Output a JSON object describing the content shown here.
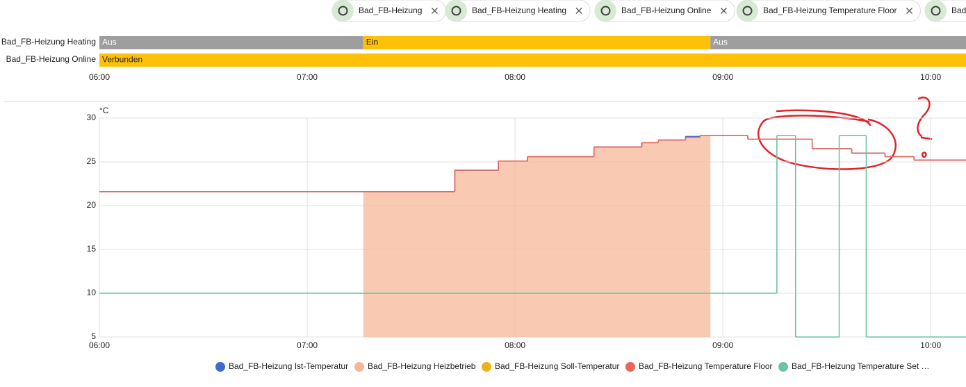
{
  "chips": [
    {
      "label": "Bad_FB-Heizung"
    },
    {
      "label": "Bad_FB-Heizung Heating"
    },
    {
      "label": "Bad_FB-Heizung Online"
    },
    {
      "label": "Bad_FB-Heizung Temperature Floor"
    },
    {
      "label": "Bad"
    }
  ],
  "timeline": {
    "xlim": [
      6,
      10.17
    ],
    "xticks": [
      {
        "value": 6,
        "label": "06:00"
      },
      {
        "value": 7,
        "label": "07:00"
      },
      {
        "value": 8,
        "label": "08:00"
      },
      {
        "value": 9,
        "label": "09:00"
      },
      {
        "value": 10,
        "label": "10:00"
      }
    ],
    "rows": [
      {
        "label": "Bad_FB-Heizung Heating",
        "segments": [
          {
            "label": "Aus",
            "start": 6,
            "end": 7.27,
            "color": "#9e9e9e"
          },
          {
            "label": "Ein",
            "start": 7.27,
            "end": 8.94,
            "color": "#ffc107"
          },
          {
            "label": "Aus",
            "start": 8.94,
            "end": 10.17,
            "color": "#9e9e9e"
          }
        ]
      },
      {
        "label": "Bad_FB-Heizung Online",
        "segments": [
          {
            "label": "Verbunden",
            "start": 6,
            "end": 10.17,
            "color": "#ffc107"
          }
        ]
      }
    ]
  },
  "chart_data": {
    "type": "step-line",
    "y_unit": "°C",
    "xlim": [
      6,
      10.17
    ],
    "ylim": [
      5,
      30
    ],
    "xticks": [
      {
        "value": 6,
        "label": "06:00"
      },
      {
        "value": 7,
        "label": "07:00"
      },
      {
        "value": 8,
        "label": "08:00"
      },
      {
        "value": 9,
        "label": "09:00"
      },
      {
        "value": 10,
        "label": "10:00"
      }
    ],
    "yticks": [
      5,
      10,
      15,
      20,
      25,
      30
    ],
    "grid": true,
    "series": [
      {
        "name": "Bad_FB-Heizung Ist-Temperatur",
        "color": "#4269d0",
        "kind": "line",
        "x": [
          6,
          7.71,
          7.92,
          8.06,
          8.38,
          8.61,
          8.69,
          8.82,
          8.89,
          9.12,
          9.43,
          9.62,
          9.78,
          9.92
        ],
        "values": [
          21.6,
          24.05,
          25.1,
          25.6,
          26.7,
          27.2,
          27.5,
          27.9,
          28.0,
          27.6,
          26.5,
          26.0,
          25.6,
          25.2
        ]
      },
      {
        "name": "Bad_FB-Heizung Heizbetrieb",
        "color": "#f7b797",
        "kind": "area",
        "x_end": 8.94,
        "x": [
          7.27,
          7.71,
          7.92,
          8.06,
          8.38,
          8.61,
          8.69,
          8.82,
          8.89
        ],
        "values": [
          21.6,
          24.05,
          25.1,
          25.6,
          26.7,
          27.2,
          27.5,
          27.8,
          28.0
        ]
      },
      {
        "name": "Bad_FB-Heizung Soll-Temperatur",
        "color": "#efb118",
        "kind": "line",
        "x": [],
        "values": []
      },
      {
        "name": "Bad_FB-Heizung Temperature Floor",
        "color": "#e8675a",
        "kind": "line",
        "x": [
          6,
          7.71,
          7.92,
          8.06,
          8.38,
          8.61,
          8.69,
          8.82,
          8.89,
          9.12,
          9.43,
          9.62,
          9.78,
          9.92
        ],
        "values": [
          21.6,
          24.05,
          25.1,
          25.6,
          26.7,
          27.2,
          27.5,
          27.8,
          28.0,
          27.6,
          26.5,
          26.0,
          25.6,
          25.2
        ]
      },
      {
        "name": "Bad_FB-Heizung Temperature Set …",
        "color": "#6cc5a0",
        "kind": "line",
        "x": [
          6,
          9.26,
          9.35,
          9.56,
          9.69
        ],
        "values": [
          10,
          28,
          5,
          28,
          5
        ]
      }
    ]
  }
}
